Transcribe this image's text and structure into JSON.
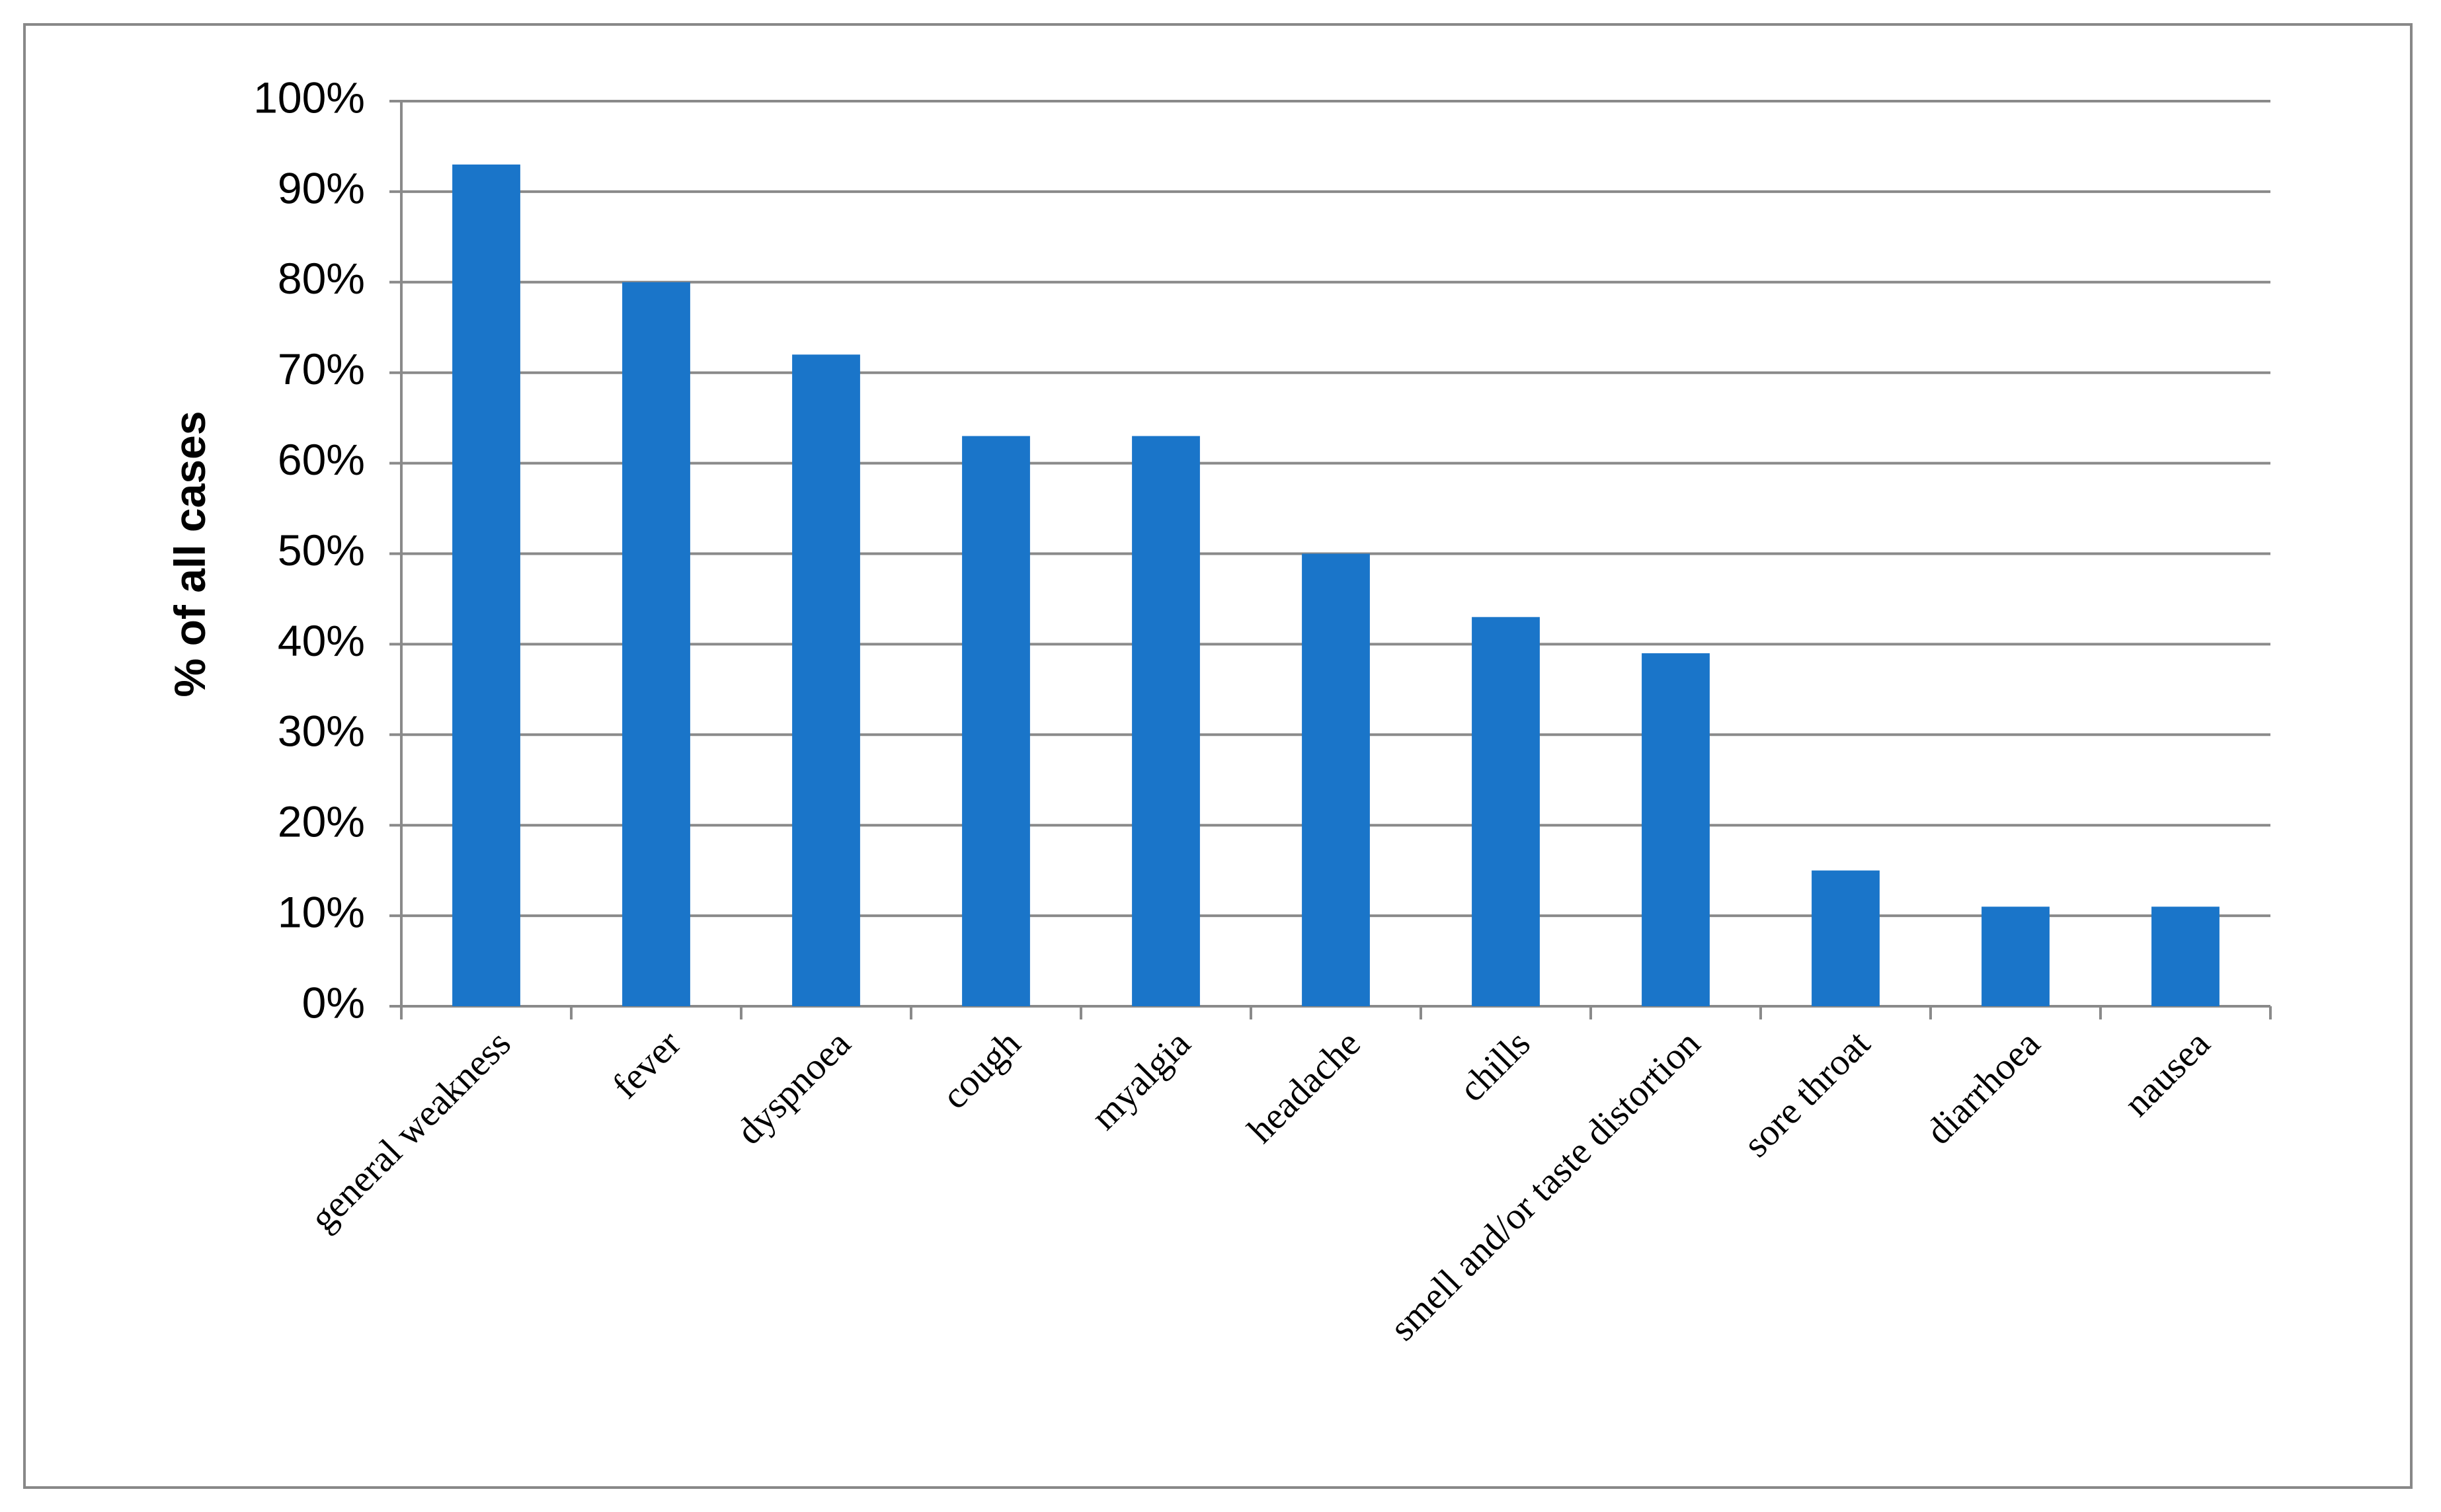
{
  "chart_data": {
    "type": "bar",
    "y_axis_label": "% of all cases",
    "categories": [
      "general weakness",
      "fever",
      "dyspnoea",
      "cough",
      "myalgia",
      "headache",
      "chills",
      "smell and/or taste distortion",
      "sore throat",
      "diarrhoea",
      "nausea"
    ],
    "values": [
      93,
      80,
      72,
      63,
      63,
      50,
      43,
      39,
      15,
      11,
      11
    ],
    "color": "#1a75c9",
    "ylim": [
      0,
      100
    ],
    "yticks": [
      {
        "value": 0,
        "label": "0%"
      },
      {
        "value": 10,
        "label": "10%"
      },
      {
        "value": 20,
        "label": "20%"
      },
      {
        "value": 30,
        "label": "30%"
      },
      {
        "value": 40,
        "label": "40%"
      },
      {
        "value": 50,
        "label": "50%"
      },
      {
        "value": 60,
        "label": "60%"
      },
      {
        "value": 70,
        "label": "70%"
      },
      {
        "value": 80,
        "label": "80%"
      },
      {
        "value": 90,
        "label": "90%"
      },
      {
        "value": 100,
        "label": "100%"
      }
    ],
    "grid": true
  }
}
